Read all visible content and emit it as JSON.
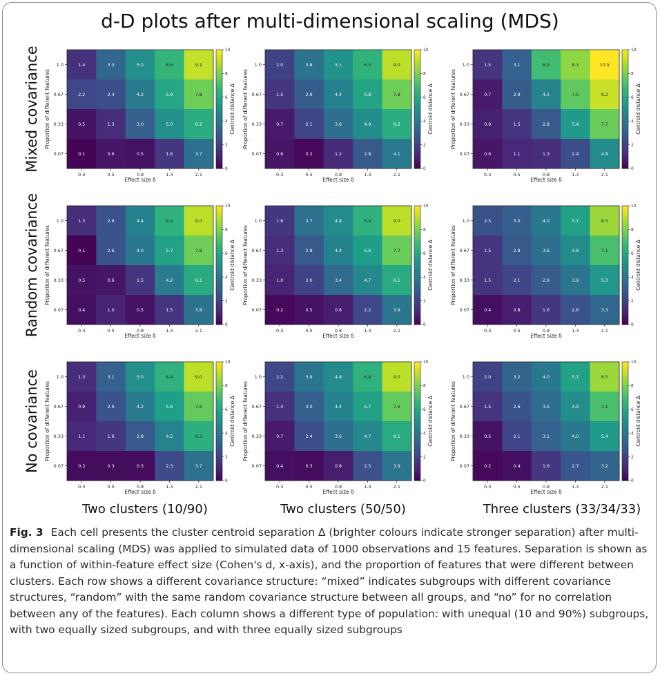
{
  "title": "d-D plots after multi-dimensional scaling (MDS)",
  "row_labels": [
    "Mixed covariance",
    "Random covariance",
    "No covariance"
  ],
  "column_labels": [
    "Two clusters (10/90)",
    "Two clusters (50/50)",
    "Three clusters (33/34/33)"
  ],
  "caption": {
    "label": "Fig. 3",
    "text": "Each cell presents the cluster centroid separation Δ (brighter colours indicate stronger separation) after multi-dimensional scaling (MDS) was applied to simulated data of 1000 observations and 15 features. Separation is shown as a function of within-feature effect size (Cohen's d, x-axis), and the proportion of features that were different between clusters. Each row shows a different covariance structure: “mixed” indicates subgroups with different covariance structures, “random” with the same random covariance structure between all groups, and “no” for no correlation between any of the features). Each column shows a different type of population: with unequal (10 and 90%) subgroups, with two equally sized subgroups, and with three equally sized subgroups"
  },
  "colormap": [
    "#440154",
    "#482878",
    "#3e4989",
    "#31688e",
    "#26828e",
    "#1f9e89",
    "#35b779",
    "#6ece58",
    "#b5de2b",
    "#fde725"
  ],
  "chart_data": [
    {
      "type": "heatmap",
      "row": "Mixed covariance",
      "column": "Two clusters (10/90)",
      "xlabel": "Effect size δ",
      "ylabel": "Proportion of different features",
      "colorbar_label": "Centroid distance Δ",
      "x": [
        "0.3",
        "0.5",
        "0.8",
        "1.3",
        "2.1"
      ],
      "y": [
        "1.0",
        "0.67",
        "0.33",
        "0.07"
      ],
      "values": [
        [
          1.4,
          3.3,
          5.0,
          6.6,
          9.1
        ],
        [
          2.2,
          2.4,
          4.2,
          5.9,
          7.8
        ],
        [
          0.5,
          1.3,
          3.0,
          5.0,
          6.2
        ],
        [
          0.1,
          0.6,
          0.5,
          1.6,
          3.7
        ]
      ],
      "vmin": 0,
      "vmax": 10,
      "colorbar_ticks": [
        0,
        2,
        4,
        6,
        8,
        10
      ]
    },
    {
      "type": "heatmap",
      "row": "Mixed covariance",
      "column": "Two clusters (50/50)",
      "xlabel": "Effect size δ",
      "ylabel": "Proportion of different features",
      "colorbar_label": "Centroid distance Δ",
      "x": [
        "0.3",
        "0.5",
        "0.8",
        "1.3",
        "2.1"
      ],
      "y": [
        "1.0",
        "0.67",
        "0.33",
        "0.07"
      ],
      "values": [
        [
          2.0,
          3.8,
          5.1,
          6.5,
          9.0
        ],
        [
          1.5,
          2.9,
          4.4,
          5.8,
          7.8
        ],
        [
          0.7,
          2.1,
          3.6,
          4.9,
          6.2
        ],
        [
          0.6,
          0.2,
          1.2,
          2.8,
          4.1
        ]
      ],
      "vmin": 0,
      "vmax": 10,
      "colorbar_ticks": [
        0,
        2,
        4,
        6,
        8,
        10
      ]
    },
    {
      "type": "heatmap",
      "row": "Mixed covariance",
      "column": "Three clusters (33/34/33)",
      "xlabel": "Effect size δ",
      "ylabel": "Proportion of different features",
      "colorbar_label": "Centroid distance Δ",
      "x": [
        "0.3",
        "0.5",
        "0.8",
        "1.3",
        "2.1"
      ],
      "y": [
        "1.0",
        "0.67",
        "0.33",
        "0.07"
      ],
      "values": [
        [
          1.5,
          3.1,
          6.9,
          8.3,
          10.5
        ],
        [
          0.7,
          2.9,
          4.5,
          7.5,
          9.2
        ],
        [
          0.9,
          1.5,
          2.8,
          5.4,
          7.7
        ],
        [
          0.6,
          1.1,
          1.3,
          2.4,
          4.8
        ]
      ],
      "vmin": 0,
      "vmax": 10,
      "colorbar_ticks": [
        0,
        2,
        4,
        6,
        8,
        10
      ]
    },
    {
      "type": "heatmap",
      "row": "Random covariance",
      "column": "Two clusters (10/90)",
      "xlabel": "Effect size δ",
      "ylabel": "Proportion of different features",
      "colorbar_label": "Centroid distance Δ",
      "x": [
        "0.3",
        "0.5",
        "0.8",
        "1.3",
        "2.1"
      ],
      "y": [
        "1.0",
        "0.67",
        "0.33",
        "0.07"
      ],
      "values": [
        [
          1.3,
          2.6,
          4.4,
          6.4,
          9.0
        ],
        [
          0.1,
          2.6,
          4.0,
          5.7,
          7.8
        ],
        [
          0.5,
          0.6,
          1.5,
          4.2,
          6.1
        ],
        [
          0.4,
          1.0,
          0.5,
          1.5,
          3.8
        ]
      ],
      "vmin": 0,
      "vmax": 10,
      "colorbar_ticks": [
        0,
        2,
        4,
        6,
        8,
        10
      ]
    },
    {
      "type": "heatmap",
      "row": "Random covariance",
      "column": "Two clusters (50/50)",
      "xlabel": "Effect size δ",
      "ylabel": "Proportion of different features",
      "colorbar_label": "Centroid distance Δ",
      "x": [
        "0.3",
        "0.5",
        "0.8",
        "1.3",
        "2.1"
      ],
      "y": [
        "1.0",
        "0.67",
        "0.33",
        "0.07"
      ],
      "values": [
        [
          1.6,
          3.7,
          4.8,
          6.4,
          9.0
        ],
        [
          1.3,
          2.8,
          4.4,
          5.6,
          7.7
        ],
        [
          1.0,
          2.0,
          3.4,
          4.7,
          6.1
        ],
        [
          0.2,
          0.5,
          0.8,
          2.2,
          3.9
        ]
      ],
      "vmin": 0,
      "vmax": 10,
      "colorbar_ticks": [
        0,
        2,
        4,
        6,
        8,
        10
      ]
    },
    {
      "type": "heatmap",
      "row": "Random covariance",
      "column": "Three clusters (33/34/33)",
      "xlabel": "Effect size δ",
      "ylabel": "Proportion of different features",
      "colorbar_label": "Centroid distance Δ",
      "x": [
        "0.3",
        "0.5",
        "0.8",
        "1.3",
        "2.1"
      ],
      "y": [
        "1.0",
        "0.67",
        "0.33",
        "0.07"
      ],
      "values": [
        [
          2.5,
          3.0,
          4.0,
          5.7,
          8.5
        ],
        [
          1.5,
          2.8,
          3.6,
          4.8,
          7.1
        ],
        [
          1.5,
          2.1,
          2.9,
          3.9,
          5.3
        ],
        [
          0.4,
          0.8,
          1.6,
          2.6,
          3.3
        ]
      ],
      "vmin": 0,
      "vmax": 10,
      "colorbar_ticks": [
        0,
        2,
        4,
        6,
        8,
        10
      ]
    },
    {
      "type": "heatmap",
      "row": "No covariance",
      "column": "Two clusters (10/90)",
      "xlabel": "Effect size δ",
      "ylabel": "Proportion of different features",
      "colorbar_label": "Centroid distance Δ",
      "x": [
        "0.3",
        "0.5",
        "0.8",
        "1.3",
        "2.1"
      ],
      "y": [
        "1.0",
        "0.67",
        "0.33",
        "0.07"
      ],
      "values": [
        [
          1.3,
          3.1,
          5.0,
          6.4,
          9.0
        ],
        [
          0.9,
          2.6,
          4.2,
          5.6,
          7.6
        ],
        [
          1.1,
          1.6,
          2.8,
          4.5,
          6.3
        ],
        [
          0.3,
          0.3,
          0.3,
          2.3,
          3.7
        ]
      ],
      "vmin": 0,
      "vmax": 10,
      "colorbar_ticks": [
        0,
        2,
        4,
        6,
        8,
        10
      ]
    },
    {
      "type": "heatmap",
      "row": "No covariance",
      "column": "Two clusters (50/50)",
      "xlabel": "Effect size δ",
      "ylabel": "Proportion of different features",
      "colorbar_label": "Centroid distance Δ",
      "x": [
        "0.3",
        "0.5",
        "0.8",
        "1.3",
        "2.1"
      ],
      "y": [
        "1.0",
        "0.67",
        "0.33",
        "0.07"
      ],
      "values": [
        [
          2.2,
          3.9,
          4.8,
          6.4,
          9.0
        ],
        [
          1.4,
          3.0,
          4.4,
          5.7,
          7.6
        ],
        [
          0.7,
          2.4,
          3.6,
          4.7,
          6.1
        ],
        [
          0.4,
          0.3,
          0.8,
          2.5,
          3.9
        ]
      ],
      "vmin": 0,
      "vmax": 10,
      "colorbar_ticks": [
        0,
        2,
        4,
        6,
        8,
        10
      ]
    },
    {
      "type": "heatmap",
      "row": "No covariance",
      "column": "Three clusters (33/34/33)",
      "xlabel": "Effect size δ",
      "ylabel": "Proportion of different features",
      "colorbar_label": "Centroid distance Δ",
      "x": [
        "0.3",
        "0.5",
        "0.8",
        "1.3",
        "2.1"
      ],
      "y": [
        "1.0",
        "0.67",
        "0.33",
        "0.07"
      ],
      "values": [
        [
          2.0,
          3.2,
          4.0,
          5.7,
          8.5
        ],
        [
          1.5,
          2.6,
          3.5,
          4.9,
          7.1
        ],
        [
          0.5,
          2.1,
          3.1,
          4.0,
          5.4
        ],
        [
          0.2,
          0.4,
          1.6,
          2.7,
          3.2
        ]
      ],
      "vmin": 0,
      "vmax": 10,
      "colorbar_ticks": [
        0,
        2,
        4,
        6,
        8,
        10
      ]
    }
  ]
}
